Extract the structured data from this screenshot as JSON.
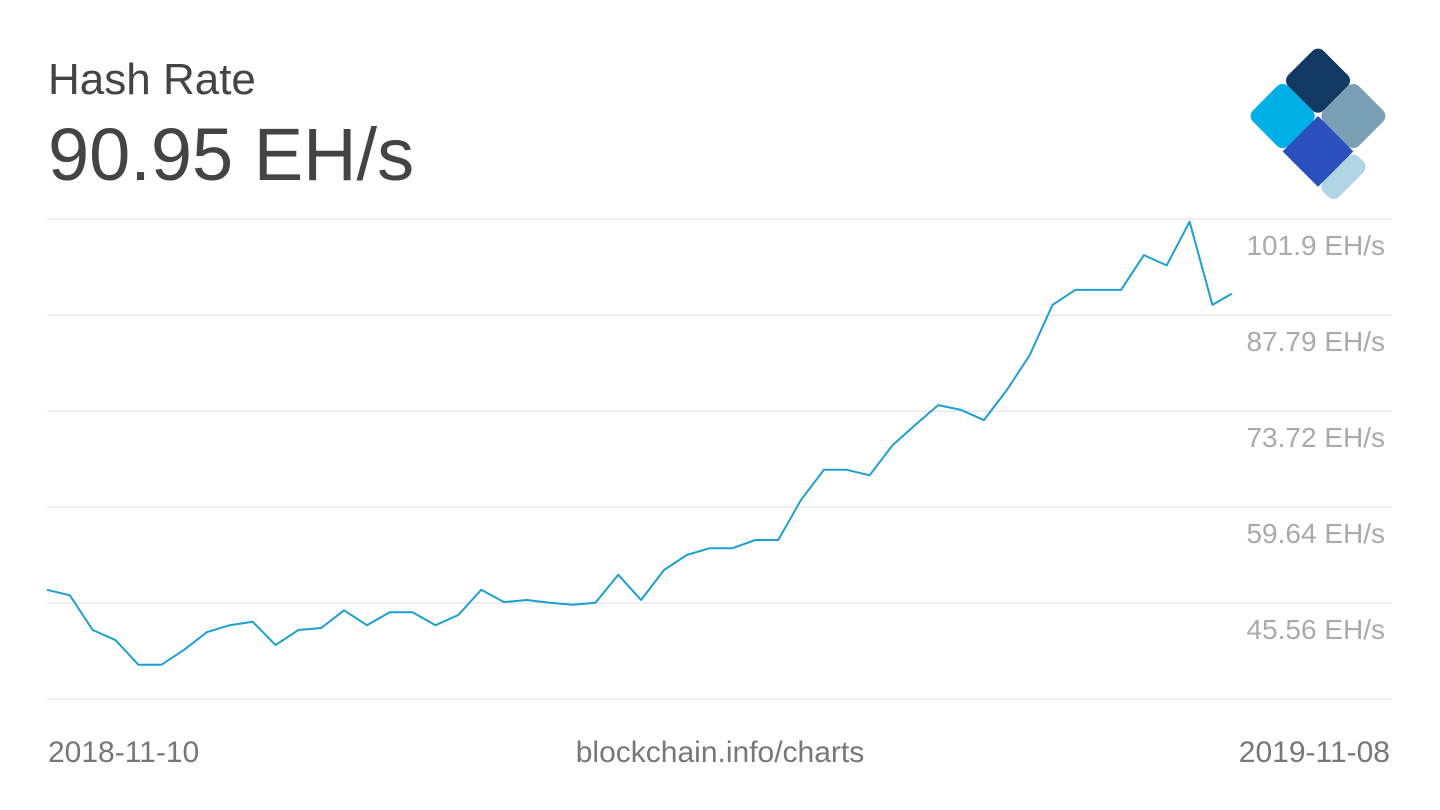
{
  "chart_data": {
    "type": "line",
    "title": "Hash Rate",
    "current_value": "90.95 EH/s",
    "source": "blockchain.info/charts",
    "color": "#1e9fd2",
    "grid": true,
    "x": [
      "2018-11-10",
      "2018-11-17",
      "2018-11-24",
      "2018-12-01",
      "2018-12-08",
      "2018-12-15",
      "2018-12-22",
      "2018-12-29",
      "2019-01-05",
      "2019-01-12",
      "2019-01-19",
      "2019-01-26",
      "2019-02-02",
      "2019-02-09",
      "2019-02-16",
      "2019-02-23",
      "2019-03-02",
      "2019-03-09",
      "2019-03-16",
      "2019-03-23",
      "2019-03-30",
      "2019-04-06",
      "2019-04-13",
      "2019-04-20",
      "2019-04-27",
      "2019-05-04",
      "2019-05-11",
      "2019-05-18",
      "2019-05-25",
      "2019-06-01",
      "2019-06-08",
      "2019-06-15",
      "2019-06-22",
      "2019-06-29",
      "2019-07-06",
      "2019-07-13",
      "2019-07-20",
      "2019-07-27",
      "2019-08-03",
      "2019-08-10",
      "2019-08-17",
      "2019-08-24",
      "2019-08-31",
      "2019-09-07",
      "2019-09-14",
      "2019-09-21",
      "2019-09-28",
      "2019-10-05",
      "2019-10-12",
      "2019-10-19",
      "2019-10-26",
      "2019-11-02",
      "2019-11-08"
    ],
    "values": [
      47.5,
      46.7,
      41.6,
      40.1,
      36.5,
      36.5,
      38.7,
      41.3,
      42.3,
      42.8,
      39.4,
      41.6,
      41.9,
      44.5,
      42.3,
      44.2,
      44.2,
      42.3,
      43.8,
      47.5,
      45.7,
      46.0,
      45.6,
      45.3,
      45.6,
      49.7,
      46.0,
      50.4,
      52.6,
      53.6,
      53.6,
      54.8,
      54.8,
      60.7,
      65.1,
      65.1,
      64.3,
      68.7,
      71.7,
      74.6,
      73.9,
      72.4,
      76.8,
      81.9,
      89.3,
      91.5,
      91.5,
      91.5,
      96.6,
      95.1,
      101.5,
      89.3,
      90.95
    ],
    "ylim": [
      31.48,
      101.9
    ],
    "yticks": [
      {
        "value": 101.9,
        "label": "101.9 EH/s"
      },
      {
        "value": 87.79,
        "label": "87.79 EH/s"
      },
      {
        "value": 73.72,
        "label": "73.72 EH/s"
      },
      {
        "value": 59.64,
        "label": "59.64 EH/s"
      },
      {
        "value": 45.56,
        "label": "45.56 EH/s"
      }
    ]
  }
}
